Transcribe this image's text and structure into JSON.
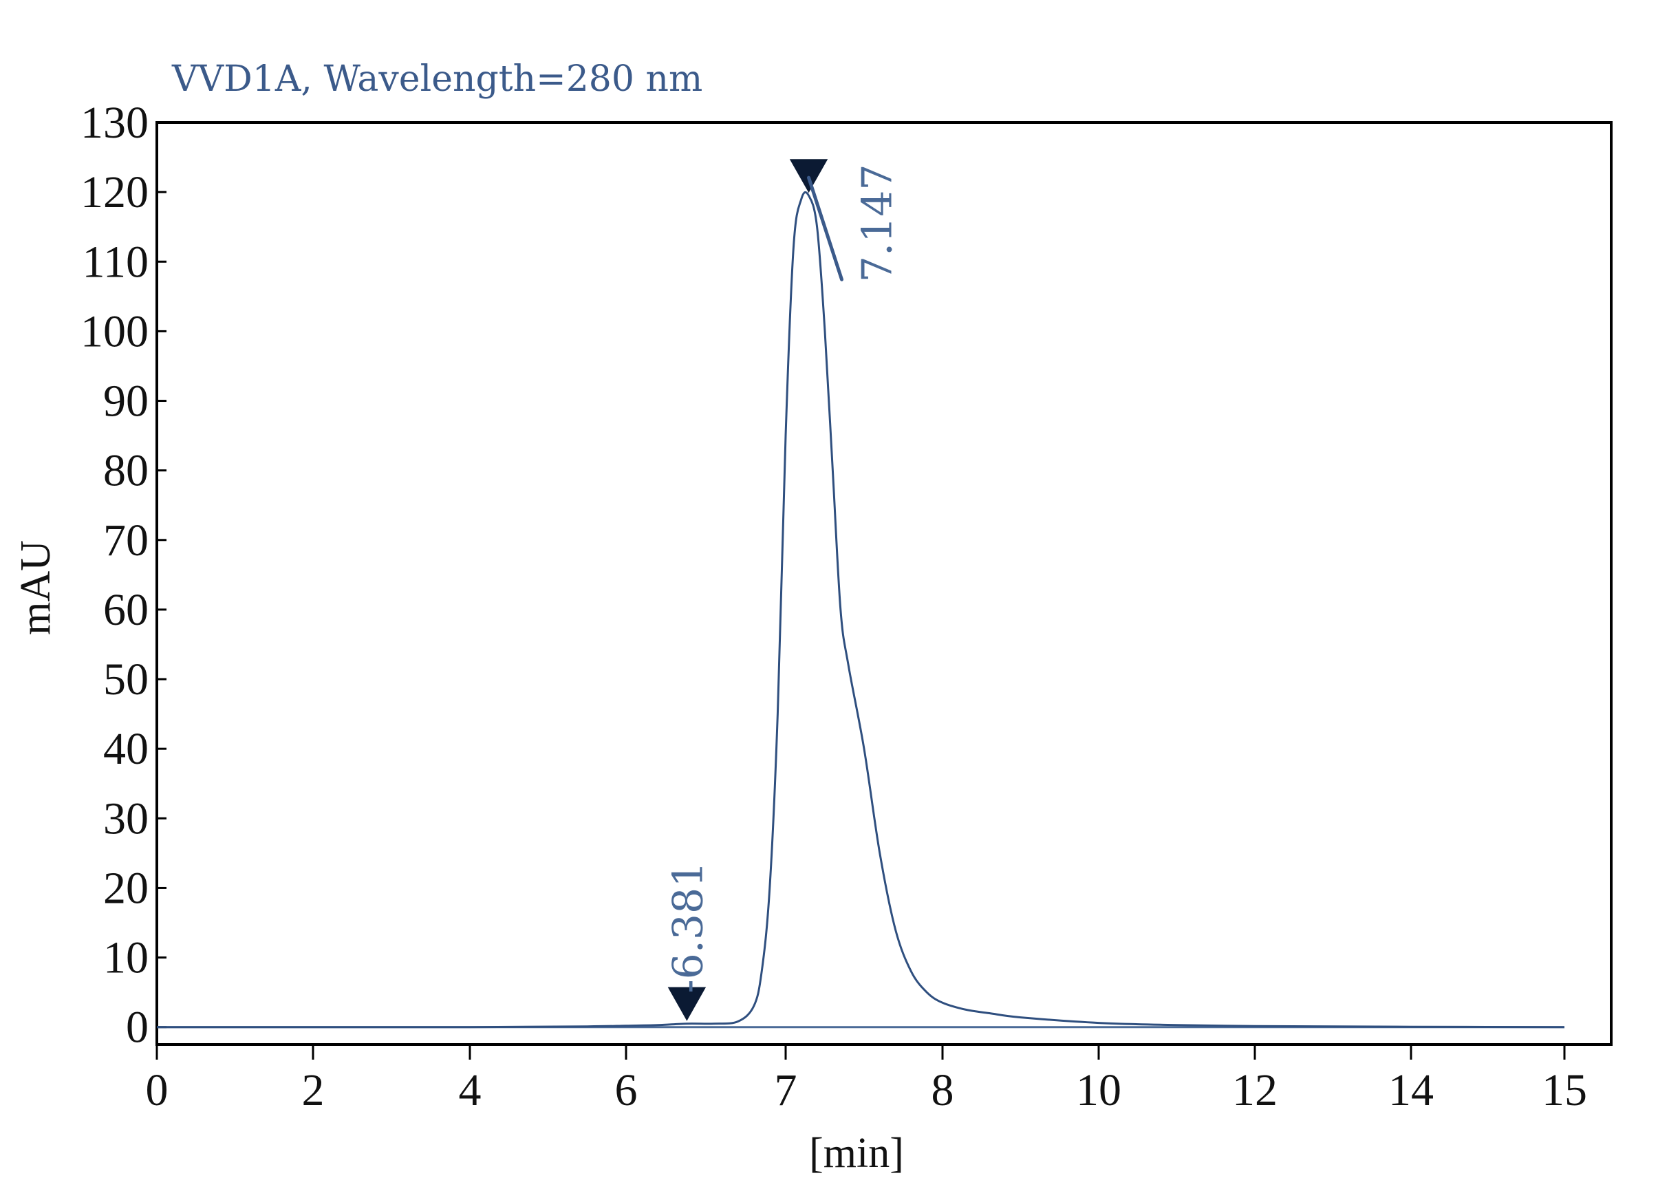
{
  "chart_data": {
    "type": "line",
    "title": "VVD1A, Wavelength=280 nm",
    "xlabel": "[min]",
    "ylabel": "mAU",
    "xticks": [
      "0",
      "2",
      "4",
      "6",
      "7",
      "8",
      "10",
      "12",
      "14",
      "15"
    ],
    "ylim": [
      -2.5,
      130
    ],
    "yticks": [
      0,
      10,
      20,
      30,
      40,
      50,
      60,
      70,
      80,
      90,
      100,
      110,
      120,
      130
    ],
    "grid": false,
    "legend": "none",
    "series": [
      {
        "color": "#2f4f7f",
        "points": [
          [
            0,
            0
          ],
          [
            2,
            0
          ],
          [
            4,
            0
          ],
          [
            5.5,
            0.1
          ],
          [
            6.0,
            0.2
          ],
          [
            6.2,
            0.3
          ],
          [
            6.381,
            0.5
          ],
          [
            6.55,
            0.5
          ],
          [
            6.7,
            0.8
          ],
          [
            6.8,
            3
          ],
          [
            6.85,
            8
          ],
          [
            6.9,
            20
          ],
          [
            6.95,
            45
          ],
          [
            7.0,
            85
          ],
          [
            7.05,
            112
          ],
          [
            7.1,
            119
          ],
          [
            7.147,
            119.5
          ],
          [
            7.2,
            115
          ],
          [
            7.25,
            100
          ],
          [
            7.3,
            80
          ],
          [
            7.35,
            60
          ],
          [
            7.4,
            52
          ],
          [
            7.5,
            40
          ],
          [
            7.6,
            25
          ],
          [
            7.7,
            14
          ],
          [
            7.8,
            8
          ],
          [
            7.9,
            5
          ],
          [
            8.0,
            3.5
          ],
          [
            8.3,
            2.5
          ],
          [
            8.6,
            2
          ],
          [
            9.0,
            1.4
          ],
          [
            10,
            0.6
          ],
          [
            11,
            0.3
          ],
          [
            12,
            0.15
          ],
          [
            14,
            0.05
          ],
          [
            15,
            0
          ]
        ]
      }
    ],
    "peaks": [
      {
        "label": "-6.381",
        "x": 6.381,
        "y": 0.5
      },
      {
        "label": "7.147",
        "x": 7.147,
        "y": 119.5
      }
    ],
    "baseline": {
      "x": [
        0,
        15
      ],
      "y": 0
    }
  }
}
